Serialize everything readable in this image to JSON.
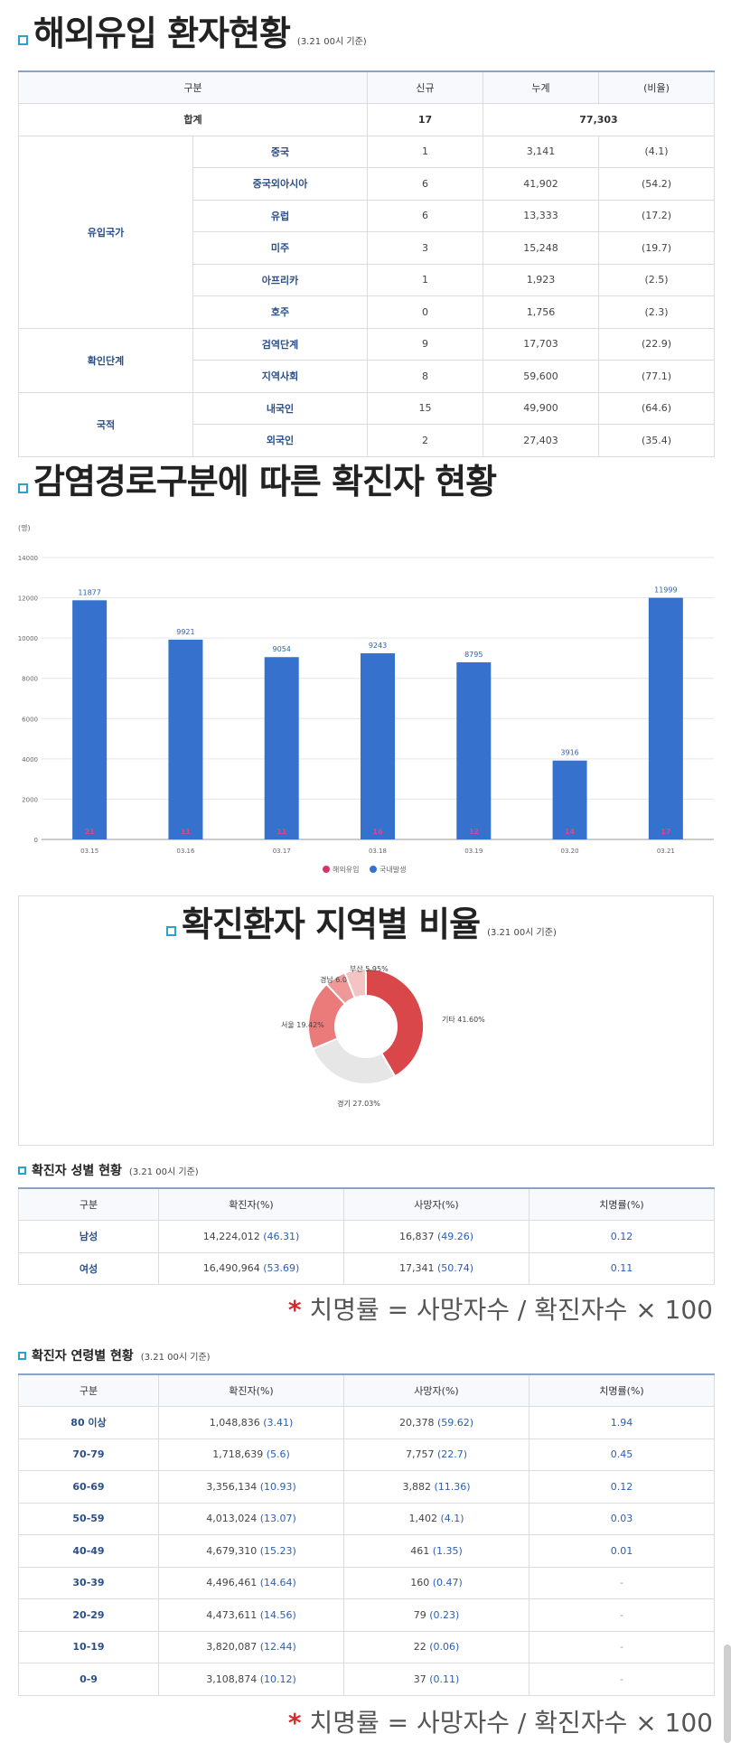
{
  "overseas": {
    "title": "해외유입 환자현황",
    "note": "(3.21 00시 기준)",
    "headers": [
      "구분",
      "신규",
      "누계",
      "(비율)"
    ],
    "total": {
      "label": "합계",
      "new": "17",
      "cum": "77,303"
    },
    "groups": [
      {
        "name": "유입국가",
        "rows": [
          {
            "label": "중국",
            "new": "1",
            "cum": "3,141",
            "ratio": "(4.1)"
          },
          {
            "label": "중국외아시아",
            "new": "6",
            "cum": "41,902",
            "ratio": "(54.2)"
          },
          {
            "label": "유럽",
            "new": "6",
            "cum": "13,333",
            "ratio": "(17.2)"
          },
          {
            "label": "미주",
            "new": "3",
            "cum": "15,248",
            "ratio": "(19.7)"
          },
          {
            "label": "아프리카",
            "new": "1",
            "cum": "1,923",
            "ratio": "(2.5)"
          },
          {
            "label": "호주",
            "new": "0",
            "cum": "1,756",
            "ratio": "(2.3)"
          }
        ]
      },
      {
        "name": "확인단계",
        "rows": [
          {
            "label": "검역단계",
            "new": "9",
            "cum": "17,703",
            "ratio": "(22.9)"
          },
          {
            "label": "지역사회",
            "new": "8",
            "cum": "59,600",
            "ratio": "(77.1)"
          }
        ]
      },
      {
        "name": "국적",
        "rows": [
          {
            "label": "내국인",
            "new": "15",
            "cum": "49,900",
            "ratio": "(64.6)"
          },
          {
            "label": "외국인",
            "new": "2",
            "cum": "27,403",
            "ratio": "(35.4)"
          }
        ]
      }
    ]
  },
  "infection": {
    "title": "감염경로구분에 따른 확진자 현황"
  },
  "region": {
    "title": "확진환자 지역별 비율",
    "note": "(3.21 00시 기준)"
  },
  "sex": {
    "title": "확진자 성별 현황",
    "note": "(3.21 00시 기준)",
    "headers": [
      "구분",
      "확진자(%)",
      "사망자(%)",
      "치명률(%)"
    ],
    "rows": [
      {
        "label": "남성",
        "cases": "14,224,012",
        "cases_pct": "(46.31)",
        "deaths": "16,837",
        "deaths_pct": "(49.26)",
        "fatality": "0.12"
      },
      {
        "label": "여성",
        "cases": "16,490,964",
        "cases_pct": "(53.69)",
        "deaths": "17,341",
        "deaths_pct": "(50.74)",
        "fatality": "0.11"
      }
    ],
    "footnote": "치명률 = 사망자수 / 확진자수 × 100"
  },
  "age": {
    "title": "확진자 연령별 현황",
    "note": "(3.21 00시 기준)",
    "headers": [
      "구분",
      "확진자(%)",
      "사망자(%)",
      "치명률(%)"
    ],
    "rows": [
      {
        "label": "80 이상",
        "cases": "1,048,836",
        "cases_pct": "(3.41)",
        "deaths": "20,378",
        "deaths_pct": "(59.62)",
        "fatality": "1.94"
      },
      {
        "label": "70-79",
        "cases": "1,718,639",
        "cases_pct": "(5.6)",
        "deaths": "7,757",
        "deaths_pct": "(22.7)",
        "fatality": "0.45"
      },
      {
        "label": "60-69",
        "cases": "3,356,134",
        "cases_pct": "(10.93)",
        "deaths": "3,882",
        "deaths_pct": "(11.36)",
        "fatality": "0.12"
      },
      {
        "label": "50-59",
        "cases": "4,013,024",
        "cases_pct": "(13.07)",
        "deaths": "1,402",
        "deaths_pct": "(4.1)",
        "fatality": "0.03"
      },
      {
        "label": "40-49",
        "cases": "4,679,310",
        "cases_pct": "(15.23)",
        "deaths": "461",
        "deaths_pct": "(1.35)",
        "fatality": "0.01"
      },
      {
        "label": "30-39",
        "cases": "4,496,461",
        "cases_pct": "(14.64)",
        "deaths": "160",
        "deaths_pct": "(0.47)",
        "fatality": "-"
      },
      {
        "label": "20-29",
        "cases": "4,473,611",
        "cases_pct": "(14.56)",
        "deaths": "79",
        "deaths_pct": "(0.23)",
        "fatality": "-"
      },
      {
        "label": "10-19",
        "cases": "3,820,087",
        "cases_pct": "(12.44)",
        "deaths": "22",
        "deaths_pct": "(0.06)",
        "fatality": "-"
      },
      {
        "label": "0-9",
        "cases": "3,108,874",
        "cases_pct": "(10.12)",
        "deaths": "37",
        "deaths_pct": "(0.11)",
        "fatality": "-"
      }
    ],
    "footnote": "치명률 = 사망자수 / 확진자수 × 100"
  },
  "chart_data": [
    {
      "type": "bar",
      "title": "",
      "ylabel": "(명)",
      "categories": [
        "03.15",
        "03.16",
        "03.17",
        "03.18",
        "03.19",
        "03.20",
        "03.21"
      ],
      "ylim": [
        0,
        14000
      ],
      "yticks": [
        0,
        2000,
        4000,
        6000,
        8000,
        10000,
        12000,
        14000
      ],
      "grid": true,
      "legend": "bottom",
      "series": [
        {
          "name": "해외유입",
          "values": [
            21,
            11,
            11,
            16,
            12,
            14,
            17
          ],
          "color": "#d6336c"
        },
        {
          "name": "국내발생",
          "values": [
            11877,
            9921,
            9054,
            9243,
            8795,
            3916,
            11999
          ],
          "color": "#3672cd"
        }
      ]
    },
    {
      "type": "pie",
      "title": "",
      "labels": [
        "기타",
        "경기",
        "서울",
        "경남",
        "부산"
      ],
      "values": [
        41.6,
        27.03,
        19.42,
        6.0,
        5.95
      ],
      "display": [
        "기타 41.60%",
        "경기 27.03%",
        "서울 19.42%",
        "경남 6.00%",
        "부산 5.95%"
      ],
      "colors": [
        "#d9474a",
        "#e6e6e6",
        "#eb7a7a",
        "#ef9898",
        "#f4c3c3"
      ]
    }
  ]
}
